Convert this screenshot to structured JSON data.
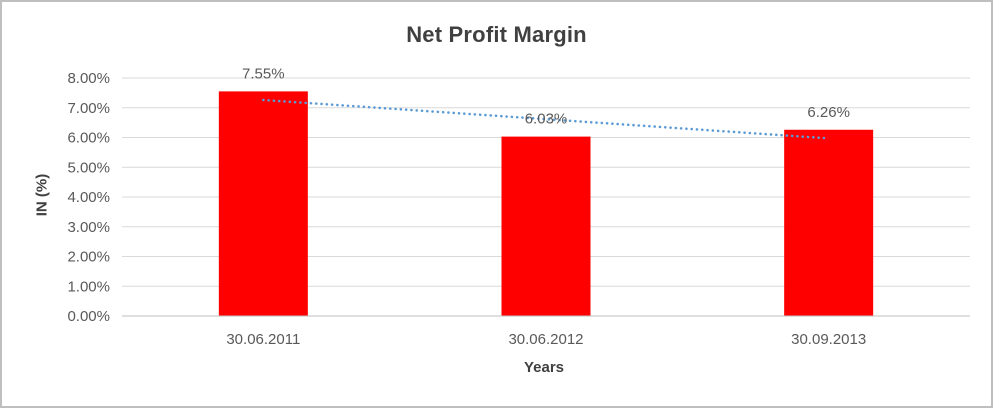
{
  "chart_data": {
    "type": "bar",
    "title": "Net Profit Margin",
    "xlabel": "Years",
    "ylabel": "IN (%)",
    "categories": [
      "30.06.2011",
      "30.06.2012",
      "30.09.2013"
    ],
    "values": [
      7.55,
      6.03,
      6.26
    ],
    "data_labels": [
      "7.55%",
      "6.03%",
      "6.26%"
    ],
    "ylim": [
      0,
      8
    ],
    "ytick_step": 1,
    "yticks": [
      "0.00%",
      "1.00%",
      "2.00%",
      "3.00%",
      "4.00%",
      "5.00%",
      "6.00%",
      "7.00%",
      "8.00%"
    ],
    "grid": true,
    "legend": "none",
    "bar_color": "#FF0000",
    "gridline_color": "#D9D9D9",
    "axis_line_color": "#BFBFBF",
    "text_color": "#595959",
    "title_color": "#404040",
    "frame_border_color": "#BFBFBF",
    "trendline": {
      "style": "dotted",
      "color": "#5B9BD5",
      "start_value": 7.26,
      "end_value": 5.97
    }
  }
}
